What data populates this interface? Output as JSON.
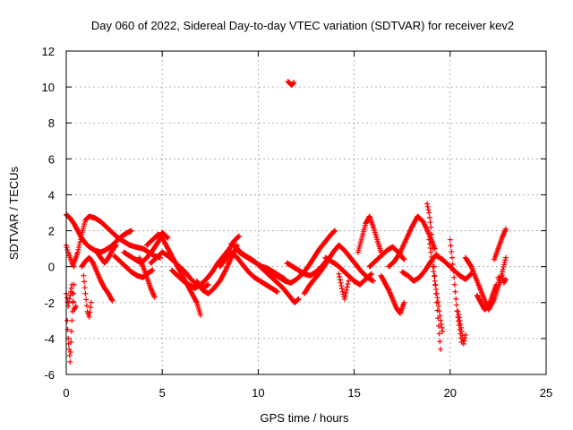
{
  "chart_data": {
    "type": "scatter",
    "title": "Day 060 of 2022, Sidereal Day-to-day VTEC variation (SDTVAR) for receiver kev2",
    "xlabel": "GPS time / hours",
    "ylabel": "SDTVAR / TECUs",
    "xlim": [
      0,
      25
    ],
    "ylim": [
      -6,
      12
    ],
    "xticks": [
      0,
      5,
      10,
      15,
      20,
      25
    ],
    "yticks": [
      -6,
      -4,
      -2,
      0,
      2,
      4,
      6,
      8,
      10,
      12
    ],
    "grid": true,
    "marker": "+",
    "series": [
      {
        "name": "SDTVAR",
        "color": "#ff0000",
        "tracks": [
          {
            "x": [
              0.0,
              0.1,
              0.2,
              0.3,
              0.4
            ],
            "y": [
              1.2,
              0.8,
              0.5,
              0.2,
              0.0
            ]
          },
          {
            "x": [
              0.05,
              0.1,
              0.15,
              0.2,
              0.25,
              0.3,
              0.35,
              0.4
            ],
            "y": [
              -3.0,
              -4.0,
              -4.6,
              -5.3,
              -4.2,
              -3.0,
              -2.0,
              -1.0
            ]
          },
          {
            "x": [
              0.0,
              0.1,
              0.2,
              0.3,
              0.4,
              0.5
            ],
            "y": [
              -1.5,
              -2.2,
              -1.6,
              -1.0,
              -2.4,
              -2.2
            ]
          },
          {
            "x": [
              0.0,
              0.2,
              0.4,
              0.6,
              0.8,
              1.0,
              1.2,
              1.5,
              1.8,
              2.0,
              2.3,
              2.6,
              2.9,
              3.2,
              3.4
            ],
            "y": [
              2.9,
              2.7,
              2.4,
              2.0,
              1.6,
              1.3,
              1.1,
              0.9,
              0.8,
              0.9,
              1.1,
              1.4,
              1.7,
              1.9,
              2.0
            ]
          },
          {
            "x": [
              0.4,
              0.6,
              0.8,
              1.0,
              1.2,
              1.5,
              1.8,
              2.1,
              2.4,
              2.7,
              3.0,
              3.3,
              3.6,
              4.0,
              4.3,
              4.6,
              4.9
            ],
            "y": [
              0.2,
              0.8,
              1.8,
              2.6,
              2.8,
              2.7,
              2.5,
              2.2,
              1.9,
              1.6,
              1.4,
              1.2,
              1.1,
              1.0,
              0.8,
              0.6,
              0.5
            ]
          },
          {
            "x": [
              0.8,
              1.0,
              1.2,
              1.4,
              1.6,
              1.8,
              2.0,
              2.2,
              2.4
            ],
            "y": [
              0.0,
              0.3,
              0.5,
              0.2,
              -0.3,
              -0.8,
              -1.2,
              -1.5,
              -1.9
            ]
          },
          {
            "x": [
              0.9,
              1.0,
              1.1,
              1.2,
              1.3
            ],
            "y": [
              -0.5,
              -1.5,
              -2.5,
              -2.8,
              -2.0
            ]
          },
          {
            "x": [
              1.6,
              1.8,
              2.0,
              2.2,
              2.4,
              2.6
            ],
            "y": [
              0.8,
              0.5,
              0.2,
              0.5,
              0.9,
              1.2
            ]
          },
          {
            "x": [
              2.5,
              2.8,
              3.1,
              3.4,
              3.7,
              4.0,
              4.2,
              4.5
            ],
            "y": [
              0.6,
              0.3,
              0.0,
              -0.3,
              -0.5,
              -0.6,
              -0.4,
              -0.2
            ]
          },
          {
            "x": [
              3.0,
              3.3,
              3.6,
              3.9,
              4.2,
              4.5,
              4.8,
              5.0,
              5.3
            ],
            "y": [
              0.8,
              0.6,
              0.4,
              0.2,
              0.5,
              0.9,
              1.4,
              1.9,
              1.6
            ]
          },
          {
            "x": [
              3.8,
              4.0,
              4.2,
              4.4,
              4.6
            ],
            "y": [
              0.5,
              0.0,
              -0.6,
              -1.2,
              -1.7
            ]
          },
          {
            "x": [
              4.2,
              4.5,
              4.8,
              5.0,
              5.3,
              5.6,
              5.9,
              6.2,
              6.5,
              6.8,
              7.0
            ],
            "y": [
              1.2,
              1.5,
              1.8,
              1.6,
              1.0,
              0.4,
              -0.2,
              -0.8,
              -1.4,
              -2.0,
              -2.7
            ]
          },
          {
            "x": [
              4.4,
              4.7,
              5.0,
              5.3,
              5.6,
              5.9,
              6.2,
              6.5,
              6.8,
              7.1,
              7.4
            ],
            "y": [
              0.2,
              0.5,
              0.8,
              0.6,
              0.3,
              0.0,
              -0.3,
              -0.7,
              -1.0,
              -1.2,
              -1.0
            ]
          },
          {
            "x": [
              5.5,
              5.8,
              6.1,
              6.4,
              6.7,
              7.0,
              7.3,
              7.6,
              7.9,
              8.2,
              8.5,
              8.8,
              9.0
            ],
            "y": [
              -0.2,
              -0.5,
              -0.8,
              -1.0,
              -1.2,
              -1.0,
              -0.7,
              -0.3,
              0.2,
              0.6,
              1.0,
              1.5,
              1.7
            ]
          },
          {
            "x": [
              6.8,
              7.1,
              7.4,
              7.7,
              8.0,
              8.3,
              8.6,
              8.9
            ],
            "y": [
              -0.8,
              -1.3,
              -1.5,
              -1.2,
              -0.8,
              -0.2,
              0.5,
              1.2
            ]
          },
          {
            "x": [
              8.6,
              8.9,
              9.2,
              9.5,
              9.8,
              10.1,
              10.4,
              10.7,
              11.0,
              11.3,
              11.6,
              11.9,
              12.1
            ],
            "y": [
              1.3,
              1.0,
              0.7,
              0.5,
              0.3,
              0.0,
              -0.3,
              -0.6,
              -0.9,
              -1.2,
              -1.6,
              -2.0,
              -1.8
            ]
          },
          {
            "x": [
              8.0,
              8.3,
              8.6,
              8.9,
              9.2,
              9.5,
              9.8,
              10.1,
              10.4,
              10.7,
              11.0
            ],
            "y": [
              0.0,
              0.4,
              0.8,
              0.5,
              0.1,
              -0.3,
              -0.6,
              -0.8,
              -1.0,
              -1.2,
              -1.4
            ]
          },
          {
            "x": [
              9.0,
              9.3,
              9.6,
              9.9,
              10.2,
              10.5,
              10.8,
              11.1,
              11.4
            ],
            "y": [
              0.8,
              0.6,
              0.4,
              0.2,
              0.0,
              -0.1,
              -0.3,
              -0.5,
              -0.7
            ]
          },
          {
            "x": [
              10.5,
              10.8,
              11.1,
              11.4,
              11.7,
              12.0,
              12.3,
              12.6,
              12.9,
              13.2,
              13.5,
              13.8,
              14.0
            ],
            "y": [
              -0.2,
              -0.4,
              -0.6,
              -0.8,
              -0.9,
              -0.7,
              -0.4,
              0.0,
              0.5,
              1.0,
              1.4,
              1.8,
              2.0
            ]
          },
          {
            "x": [
              11.5,
              11.8,
              12.1,
              12.4,
              12.7,
              13.0,
              13.3,
              13.6
            ],
            "y": [
              0.2,
              0.0,
              -0.2,
              -0.4,
              -0.5,
              -0.3,
              0.0,
              0.4
            ]
          },
          {
            "x": [
              12.4,
              12.7,
              13.0,
              13.3,
              13.6,
              13.9,
              14.2,
              14.5,
              14.8,
              15.1,
              15.4,
              15.7,
              16.0
            ],
            "y": [
              -1.5,
              -1.0,
              -0.6,
              -0.2,
              0.3,
              0.8,
              1.2,
              0.9,
              0.5,
              0.1,
              -0.3,
              -0.6,
              -0.8
            ]
          },
          {
            "x": [
              13.5,
              13.8,
              14.1,
              14.4,
              14.7,
              15.0,
              15.3,
              15.6,
              15.9
            ],
            "y": [
              0.5,
              0.3,
              0.1,
              -0.2,
              -0.5,
              -0.8,
              -1.0,
              -0.7,
              -0.4
            ]
          },
          {
            "x": [
              14.2,
              14.3,
              14.4,
              14.5,
              14.6,
              14.7
            ],
            "y": [
              -0.4,
              -0.9,
              -1.4,
              -1.8,
              -1.3,
              -0.8
            ]
          },
          {
            "x": [
              15.2,
              15.4,
              15.6,
              15.8,
              16.0,
              16.2,
              16.4
            ],
            "y": [
              0.8,
              1.6,
              2.4,
              2.8,
              2.2,
              1.5,
              0.8
            ]
          },
          {
            "x": [
              15.8,
              16.1,
              16.4,
              16.7,
              17.0,
              17.3,
              17.6
            ],
            "y": [
              0.0,
              0.3,
              0.6,
              0.9,
              1.1,
              0.8,
              0.4
            ]
          },
          {
            "x": [
              16.4,
              16.6,
              16.8,
              17.0,
              17.2,
              17.4,
              17.6
            ],
            "y": [
              -0.5,
              -0.9,
              -1.3,
              -1.8,
              -2.3,
              -2.6,
              -2.0
            ]
          },
          {
            "x": [
              16.8,
              17.1,
              17.4,
              17.7,
              18.0,
              18.3,
              18.6,
              18.9,
              19.2
            ],
            "y": [
              0.0,
              0.3,
              0.8,
              1.5,
              2.2,
              2.8,
              2.5,
              1.8,
              1.0
            ]
          },
          {
            "x": [
              17.5,
              17.8,
              18.1,
              18.4,
              18.7,
              19.0,
              19.3
            ],
            "y": [
              -0.3,
              -0.5,
              -0.8,
              -0.6,
              -0.2,
              0.3,
              0.7
            ]
          },
          {
            "x": [
              18.8,
              18.9,
              19.0,
              19.1,
              19.2,
              19.3,
              19.4,
              19.5
            ],
            "y": [
              3.5,
              3.0,
              2.2,
              1.0,
              -0.5,
              -2.0,
              -3.3,
              -4.6
            ]
          },
          {
            "x": [
              18.9,
              19.0,
              19.1,
              19.2,
              19.3,
              19.4,
              19.5,
              19.6
            ],
            "y": [
              1.5,
              0.8,
              0.0,
              -0.8,
              -1.5,
              -2.2,
              -3.0,
              -3.6
            ]
          },
          {
            "x": [
              19.3,
              19.6,
              19.9,
              20.2,
              20.5,
              20.8,
              21.1
            ],
            "y": [
              0.6,
              0.4,
              0.1,
              -0.2,
              -0.5,
              -0.7,
              -0.4
            ]
          },
          {
            "x": [
              20.0,
              20.1,
              20.2,
              20.3,
              20.4,
              20.5,
              20.6
            ],
            "y": [
              1.5,
              0.5,
              -0.6,
              -1.8,
              -2.8,
              -3.5,
              -4.2
            ]
          },
          {
            "x": [
              20.4,
              20.5,
              20.6,
              20.7,
              20.8
            ],
            "y": [
              -2.5,
              -3.0,
              -3.6,
              -4.3,
              -3.8
            ]
          },
          {
            "x": [
              20.8,
              21.1,
              21.4,
              21.7,
              22.0,
              22.3,
              22.6,
              22.9
            ],
            "y": [
              0.5,
              0.0,
              -0.8,
              -1.6,
              -2.4,
              -1.8,
              -0.8,
              0.5
            ]
          },
          {
            "x": [
              21.4,
              21.6,
              21.8,
              22.0,
              22.2,
              22.4
            ],
            "y": [
              -1.6,
              -2.0,
              -2.4,
              -2.2,
              -1.6,
              -1.0
            ]
          },
          {
            "x": [
              22.3,
              22.5,
              22.7,
              22.9
            ],
            "y": [
              0.4,
              1.0,
              1.6,
              2.1
            ]
          },
          {
            "x": [
              22.5,
              22.6,
              22.7,
              22.8,
              22.9
            ],
            "y": [
              -0.6,
              -0.9,
              -0.5,
              -0.9,
              -0.7
            ]
          },
          {
            "x": [
              11.55,
              11.65,
              11.75,
              11.85
            ],
            "y": [
              10.3,
              10.2,
              10.1,
              10.25
            ]
          }
        ]
      }
    ]
  }
}
